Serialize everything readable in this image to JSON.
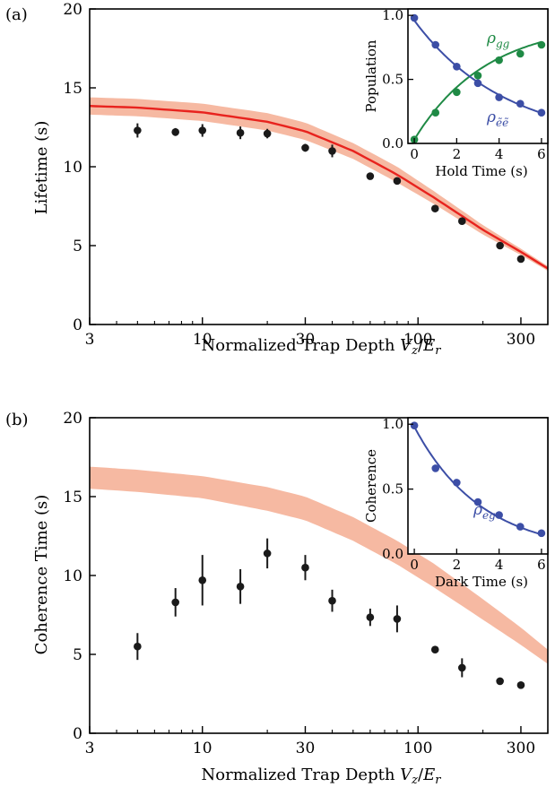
{
  "colors": {
    "band": "#f6b9a2",
    "fit_line": "#e8231e",
    "blue": "#3c4ea6",
    "green": "#1f8a45",
    "points": "#1a1a1a"
  },
  "chart_data": [
    {
      "panel_label": "(a)",
      "type": "scatter",
      "xscale": "log",
      "xlim": [
        3,
        400
      ],
      "ylim": [
        0,
        20
      ],
      "xticks": [
        3,
        10,
        30,
        100,
        300
      ],
      "xticklabels": [
        "3",
        "10",
        "30",
        "100",
        "300"
      ],
      "yticks": [
        0,
        5,
        10,
        15,
        20
      ],
      "yticklabels": [
        "0",
        "5",
        "10",
        "15",
        "20"
      ],
      "xlabel": "Normalized Trap Depth V_z/E_r",
      "ylabel": "Lifetime (s)",
      "series": [
        {
          "kind": "points",
          "x": [
            5,
            7.5,
            10,
            15,
            20,
            30,
            40,
            60,
            80,
            120,
            160,
            240,
            300
          ],
          "y": [
            12.3,
            12.2,
            12.3,
            12.15,
            12.1,
            11.2,
            11.0,
            9.4,
            9.1,
            7.35,
            6.55,
            5.0,
            4.15
          ],
          "yerr": [
            0.45,
            0.25,
            0.4,
            0.4,
            0.3,
            0.25,
            0.4,
            0.2,
            0.2,
            0.15,
            0.15,
            0.15,
            0.15
          ]
        },
        {
          "kind": "line",
          "x": [
            3,
            5,
            10,
            20,
            30,
            50,
            80,
            120,
            200,
            300,
            400
          ],
          "y": [
            13.85,
            13.75,
            13.45,
            12.85,
            12.25,
            11.0,
            9.5,
            8.0,
            6.0,
            4.6,
            3.55
          ]
        },
        {
          "kind": "band",
          "x": [
            3,
            5,
            10,
            20,
            30,
            50,
            80,
            120,
            200,
            300,
            400
          ],
          "y_low": [
            13.3,
            13.2,
            12.9,
            12.3,
            11.7,
            10.5,
            9.0,
            7.6,
            5.7,
            4.4,
            3.4
          ],
          "y_high": [
            14.4,
            14.3,
            14.0,
            13.4,
            12.8,
            11.5,
            10.0,
            8.4,
            6.3,
            4.8,
            3.7
          ]
        }
      ],
      "inset": {
        "xlim": [
          -0.3,
          6.3
        ],
        "ylim": [
          0,
          1.05
        ],
        "xticks": [
          0,
          2,
          4,
          6
        ],
        "xticklabels": [
          "0",
          "2",
          "4",
          "6"
        ],
        "yticks": [
          0,
          0.5,
          1.0
        ],
        "yticklabels": [
          "0.0",
          "0.5",
          "1.0"
        ],
        "xlabel": "Hold Time (s)",
        "ylabel": "Population",
        "series": [
          {
            "name": "ρ_gg",
            "color": "#1f8a45",
            "x": [
              0,
              1,
              2,
              3,
              4,
              5,
              6
            ],
            "y": [
              0.03,
              0.24,
              0.4,
              0.53,
              0.65,
              0.7,
              0.77
            ]
          },
          {
            "name": "ρ_ẽẽ",
            "color": "#3c4ea6",
            "x": [
              0,
              1,
              2,
              3,
              4,
              5,
              6
            ],
            "y": [
              0.98,
              0.77,
              0.6,
              0.47,
              0.36,
              0.31,
              0.24
            ]
          }
        ],
        "fits": [
          {
            "color": "#1f8a45",
            "form": "a*(1-exp(-t/tau))",
            "a": 0.92,
            "tau": 3.4,
            "offset": 0.03
          },
          {
            "color": "#3c4ea6",
            "form": "exp(-t/tau)",
            "a": 0.96,
            "tau": 4.3,
            "offset": 0.0
          }
        ]
      }
    },
    {
      "panel_label": "(b)",
      "type": "scatter",
      "xscale": "log",
      "xlim": [
        3,
        400
      ],
      "ylim": [
        0,
        20
      ],
      "xticks": [
        3,
        10,
        30,
        100,
        300
      ],
      "xticklabels": [
        "3",
        "10",
        "30",
        "100",
        "300"
      ],
      "yticks": [
        0,
        5,
        10,
        15,
        20
      ],
      "yticklabels": [
        "0",
        "5",
        "10",
        "15",
        "20"
      ],
      "xlabel": "Normalized Trap Depth V_z/E_r",
      "ylabel": "Coherence Time (s)",
      "series": [
        {
          "kind": "points",
          "x": [
            5,
            7.5,
            10,
            15,
            20,
            30,
            40,
            60,
            80,
            120,
            160,
            240,
            300
          ],
          "y": [
            5.5,
            8.3,
            9.7,
            9.3,
            11.4,
            10.5,
            8.4,
            7.35,
            7.25,
            5.3,
            4.15,
            3.3,
            3.05
          ],
          "yerr": [
            0.85,
            0.9,
            1.6,
            1.1,
            0.95,
            0.8,
            0.7,
            0.55,
            0.85,
            0.2,
            0.6,
            0.1,
            0.1
          ]
        },
        {
          "kind": "band",
          "x": [
            3,
            5,
            10,
            20,
            30,
            50,
            80,
            120,
            200,
            300,
            400
          ],
          "y_low": [
            15.5,
            15.3,
            14.9,
            14.1,
            13.5,
            12.2,
            10.7,
            9.2,
            7.2,
            5.6,
            4.4
          ],
          "y_high": [
            16.9,
            16.7,
            16.3,
            15.6,
            15.0,
            13.7,
            12.2,
            10.7,
            8.5,
            6.7,
            5.3
          ]
        }
      ],
      "inset": {
        "xlim": [
          -0.3,
          6.3
        ],
        "ylim": [
          0,
          1.05
        ],
        "xticks": [
          0,
          2,
          4,
          6
        ],
        "xticklabels": [
          "0",
          "2",
          "4",
          "6"
        ],
        "yticks": [
          0,
          0.5,
          1.0
        ],
        "yticklabels": [
          "0.0",
          "0.5",
          "1.0"
        ],
        "xlabel": "Dark Time (s)",
        "ylabel": "Coherence",
        "series": [
          {
            "name": "ρ_eg",
            "color": "#3c4ea6",
            "x": [
              0,
              1,
              2,
              3,
              4,
              5,
              6
            ],
            "y": [
              0.99,
              0.66,
              0.55,
              0.4,
              0.3,
              0.21,
              0.16
            ]
          }
        ],
        "fits": [
          {
            "color": "#3c4ea6",
            "form": "exp(-t/tau)",
            "a": 0.98,
            "tau": 3.2,
            "offset": 0.0
          }
        ]
      }
    }
  ]
}
